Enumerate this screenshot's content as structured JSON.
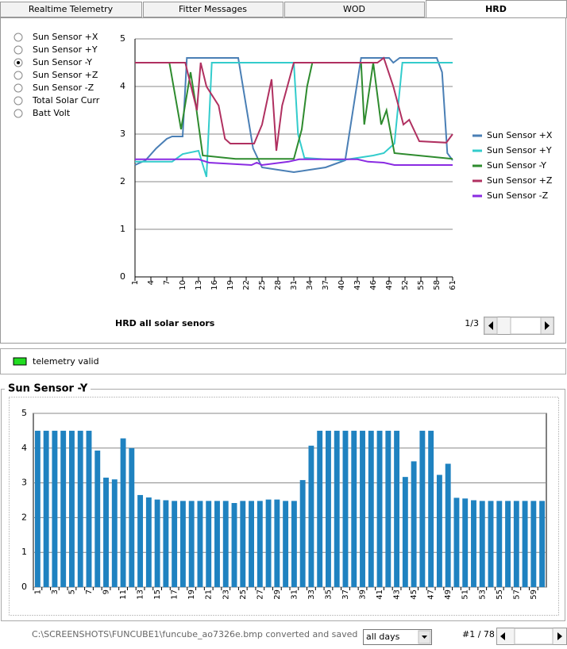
{
  "tabs": [
    "Realtime Telemetry",
    "Fitter Messages",
    "WOD",
    "HRD"
  ],
  "active_tab": 3,
  "radio": {
    "options": [
      "Sun Sensor +X",
      "Sun Sensor +Y",
      "Sun Sensor -Y",
      "Sun Sensor +Z",
      "Sun Sensor -Z",
      "Total Solar Curr",
      "Batt Volt"
    ],
    "selected": 2
  },
  "pager": "1/3",
  "status": "telemetry valid",
  "footer": {
    "path": "C:\\SCREENSHOTS\\FUNCUBE1\\funcube_ao7326e.bmp converted and saved",
    "range": "all days",
    "counter": "#1 / 78"
  },
  "chart_data": [
    {
      "type": "line",
      "title": "HRD all solar senors",
      "xlim": [
        1,
        61
      ],
      "xticks": [
        1,
        4,
        7,
        10,
        13,
        16,
        19,
        22,
        25,
        28,
        31,
        34,
        37,
        40,
        43,
        46,
        49,
        52,
        55,
        58,
        61
      ],
      "ylim": [
        0,
        5
      ],
      "yticks": [
        0,
        1,
        2,
        3,
        4,
        5
      ],
      "grid": true,
      "legend": "right",
      "series": [
        {
          "name": "Sun Sensor +X",
          "color": "#4a7fb5",
          "x": [
            1,
            3,
            5,
            7,
            8,
            10,
            10.8,
            12,
            20.5,
            23.3,
            25,
            28,
            31,
            34,
            37,
            40.7,
            43.7,
            49,
            49.8,
            51,
            58,
            59,
            60,
            61
          ],
          "values": [
            2.35,
            2.45,
            2.7,
            2.9,
            2.95,
            2.95,
            4.6,
            4.6,
            4.6,
            2.7,
            2.3,
            2.25,
            2.2,
            2.25,
            2.3,
            2.45,
            4.6,
            4.6,
            4.5,
            4.6,
            4.6,
            4.3,
            2.6,
            2.45
          ]
        },
        {
          "name": "Sun Sensor +Y",
          "color": "#33cccc",
          "x": [
            1,
            8,
            10,
            13,
            14.5,
            15.5,
            31,
            31.8,
            33,
            40,
            43,
            46,
            48,
            50,
            51.5,
            61
          ],
          "values": [
            2.42,
            2.42,
            2.58,
            2.65,
            2.1,
            4.5,
            4.5,
            3.0,
            2.5,
            2.45,
            2.5,
            2.55,
            2.6,
            2.8,
            4.5,
            4.5
          ]
        },
        {
          "name": "Sun Sensor -Y",
          "color": "#2e8b2e",
          "x": [
            1,
            7.5,
            9.7,
            11.5,
            12.5,
            13.8,
            20,
            31,
            32.5,
            33.5,
            34.5,
            43.7,
            44.3,
            46,
            47.5,
            48.5,
            50,
            61
          ],
          "values": [
            4.5,
            4.5,
            3.1,
            4.3,
            3.6,
            2.55,
            2.48,
            2.48,
            3.1,
            4.0,
            4.5,
            4.5,
            3.2,
            4.5,
            3.2,
            3.5,
            2.6,
            2.48
          ]
        },
        {
          "name": "Sun Sensor +Z",
          "color": "#b03060",
          "x": [
            1,
            9.3,
            10.5,
            12.7,
            13.4,
            14.5,
            16.8,
            18,
            19,
            23.5,
            25,
            26.8,
            27.7,
            28.8,
            31,
            46.8,
            48,
            49.8,
            51.7,
            52.8,
            54.7,
            59.8,
            61
          ],
          "values": [
            4.5,
            4.5,
            4.5,
            3.5,
            4.5,
            4.0,
            3.6,
            2.9,
            2.8,
            2.8,
            3.2,
            4.15,
            2.65,
            3.6,
            4.5,
            4.5,
            4.6,
            4.0,
            3.2,
            3.3,
            2.85,
            2.82,
            3.0
          ]
        },
        {
          "name": "Sun Sensor -Z",
          "color": "#8a2be2",
          "x": [
            1,
            13,
            15,
            23,
            24,
            25,
            30,
            32,
            43,
            45,
            48,
            50,
            61
          ],
          "values": [
            2.47,
            2.47,
            2.4,
            2.35,
            2.4,
            2.35,
            2.42,
            2.47,
            2.47,
            2.42,
            2.4,
            2.35,
            2.35
          ]
        }
      ]
    },
    {
      "type": "bar",
      "title": "Sun Sensor -Y",
      "color": "#1f82c0",
      "ylim": [
        0,
        5
      ],
      "yticks": [
        0,
        1,
        2,
        3,
        4,
        5
      ],
      "grid": true,
      "categories": [
        "1",
        null,
        "3",
        null,
        "5",
        null,
        "7",
        null,
        "9",
        null,
        "11",
        null,
        "13",
        null,
        "15",
        null,
        "17",
        null,
        "19",
        null,
        "21",
        null,
        "23",
        null,
        "25",
        null,
        "27",
        null,
        "29",
        null,
        "31",
        null,
        "33",
        null,
        "35",
        null,
        "37",
        null,
        "39",
        null,
        "41",
        null,
        "43",
        null,
        "45",
        null,
        "47",
        null,
        "49",
        null,
        "51",
        null,
        "53",
        null,
        "55",
        null,
        "57",
        null,
        "59",
        null
      ],
      "values": [
        4.5,
        4.5,
        4.5,
        4.5,
        4.5,
        4.5,
        4.5,
        3.93,
        3.15,
        3.1,
        4.28,
        4.0,
        2.65,
        2.58,
        2.52,
        2.5,
        2.48,
        2.48,
        2.48,
        2.48,
        2.48,
        2.48,
        2.48,
        2.42,
        2.48,
        2.48,
        2.48,
        2.52,
        2.52,
        2.48,
        2.48,
        3.08,
        4.07,
        4.5,
        4.5,
        4.5,
        4.5,
        4.5,
        4.5,
        4.5,
        4.5,
        4.5,
        4.5,
        3.17,
        3.62,
        4.5,
        4.5,
        3.23,
        3.55,
        2.57,
        2.55,
        2.5,
        2.48,
        2.48,
        2.48,
        2.48,
        2.48,
        2.48,
        2.48,
        2.48
      ]
    }
  ]
}
